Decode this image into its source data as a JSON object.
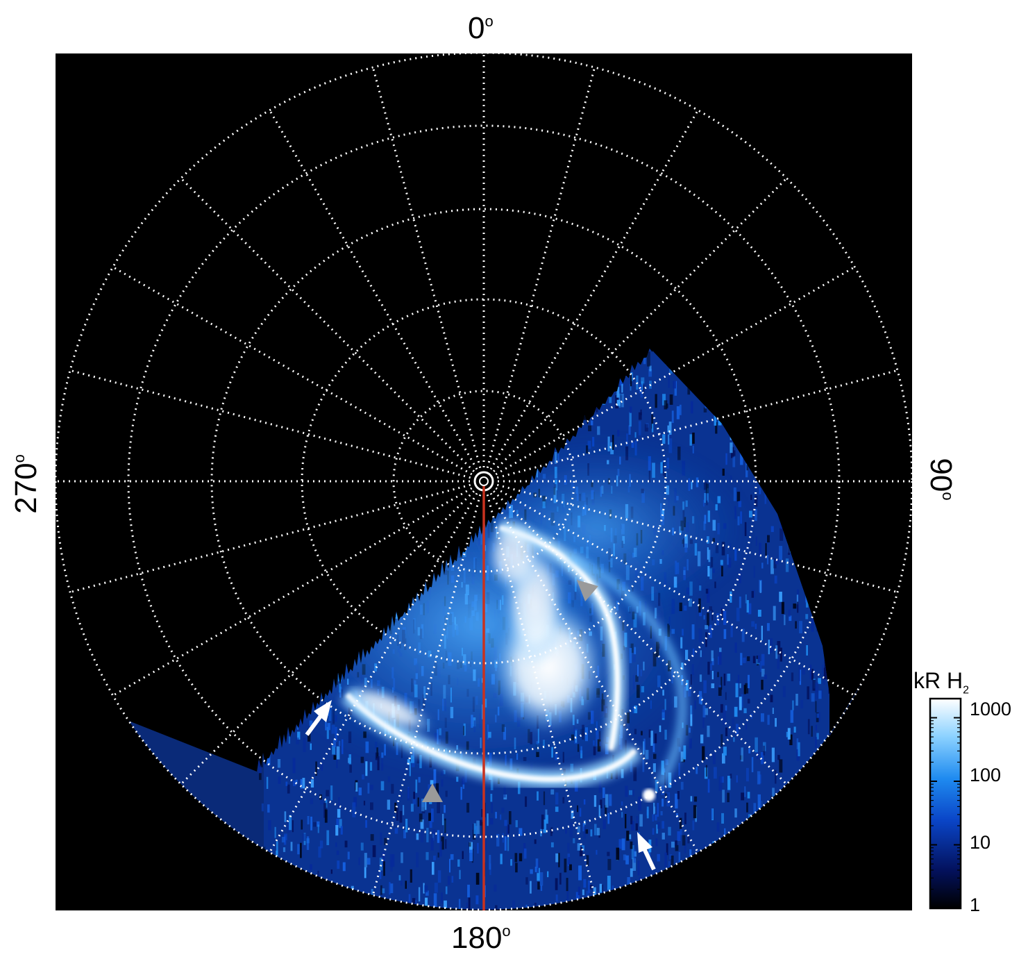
{
  "image": {
    "description_type": "polar-projection auroral emission map",
    "background": "#000000",
    "grid_color": "#ffffff",
    "meridian_color": "#c8321e",
    "arrow_colors": [
      "#ffffff",
      "#9a9a9a"
    ]
  },
  "axes": {
    "top": "0",
    "bottom": "180",
    "left": "270",
    "right": "90",
    "degree_mark": "o"
  },
  "colorbar": {
    "title_main": "kR H",
    "title_sub": "2",
    "ticks": [
      "1000",
      "100",
      "10",
      "1"
    ],
    "scale": "log",
    "range": [
      1,
      2000
    ],
    "colors": [
      "#000000",
      "#03115c",
      "#0a45c7",
      "#1f8bf0",
      "#8cd2ff",
      "#ffffff"
    ]
  },
  "annotations": {
    "white_arrows": 2,
    "gray_arrows": 2,
    "meridian_line": "180"
  }
}
